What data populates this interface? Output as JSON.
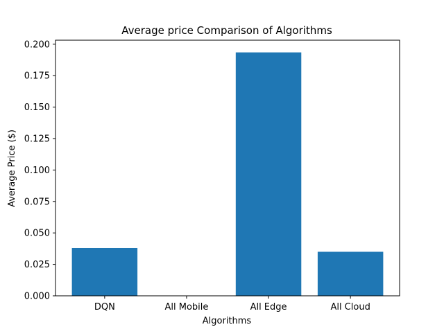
{
  "chart_data": {
    "type": "bar",
    "title": "Average price Comparison of Algorithms",
    "xlabel": "Algorithms",
    "ylabel": "Average Price ($)",
    "categories": [
      "DQN",
      "All Mobile",
      "All Edge",
      "All Cloud"
    ],
    "values": [
      0.038,
      0.0,
      0.1935,
      0.035
    ],
    "ylim": [
      0,
      0.2032
    ],
    "yticks": [
      "0.000",
      "0.025",
      "0.050",
      "0.075",
      "0.100",
      "0.125",
      "0.150",
      "0.175",
      "0.200"
    ],
    "grid": false,
    "legend": "none",
    "bar_color": "#1f77b4"
  }
}
